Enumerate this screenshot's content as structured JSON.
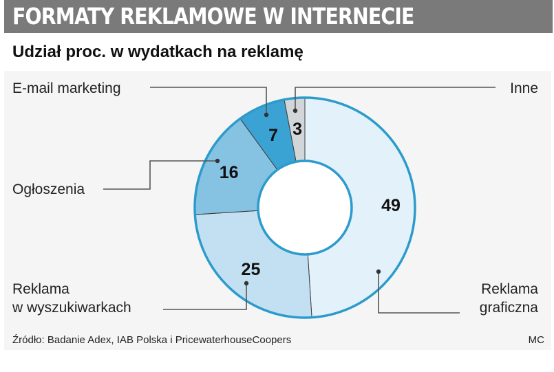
{
  "header": {
    "title": "FORMATY REKLAMOWE W INTERNECIE"
  },
  "chart_data": {
    "type": "pie",
    "title": "Udział proc. w wydatkach na reklamę",
    "series": [
      {
        "name": "Reklama graficzna",
        "label_lines": [
          "Reklama",
          "graficzna"
        ],
        "value": 49,
        "color": "#e3f1fb"
      },
      {
        "name": "Reklama w wyszukiwarkach",
        "label_lines": [
          "Reklama",
          "w wyszukiwarkach"
        ],
        "value": 25,
        "color": "#c2e0f2"
      },
      {
        "name": "Ogłoszenia",
        "label_lines": [
          "Ogłoszenia"
        ],
        "value": 16,
        "color": "#86c2e2"
      },
      {
        "name": "E-mail marketing",
        "label_lines": [
          "E-mail marketing"
        ],
        "value": 7,
        "color": "#3aa3d3"
      },
      {
        "name": "Inne",
        "label_lines": [
          "Inne"
        ],
        "value": 3,
        "color": "#d2d6d9"
      }
    ]
  },
  "footer": {
    "source": "Źródło: Badanie Adex, IAB Polska i PricewaterhouseCoopers",
    "credit": "MC"
  },
  "colors": {
    "header_bg": "#7a7a7a",
    "ring_border": "#2c9bcc",
    "panel_bg": "#f5f5f5"
  }
}
